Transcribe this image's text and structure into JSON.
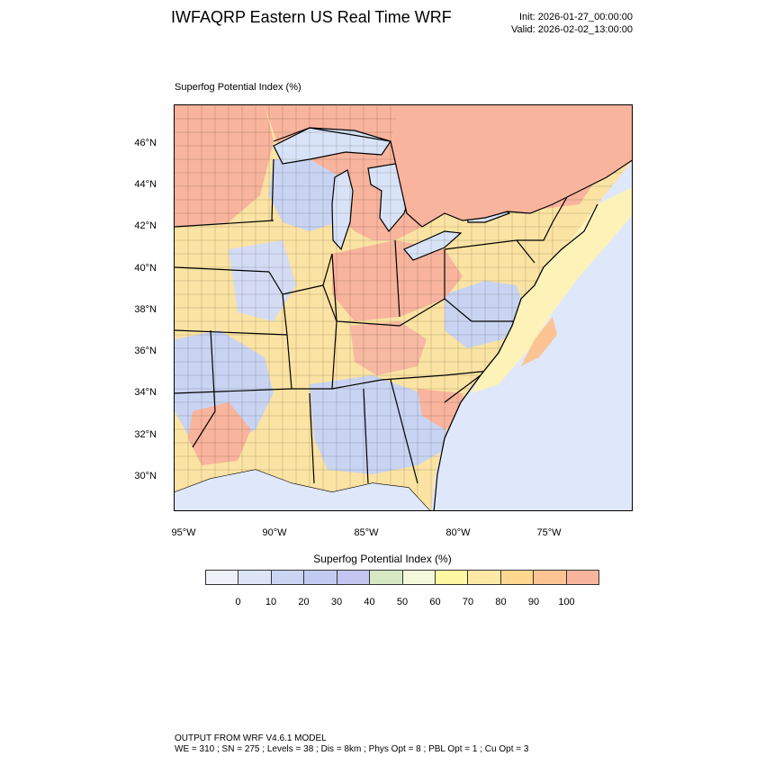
{
  "header": {
    "title": "IWFAQRP Eastern US Real Time WRF",
    "init": "Init: 2026-01-27_00:00:00",
    "valid": "Valid: 2026-02-02_13:00:00"
  },
  "map": {
    "subtitle": "Superfog Potential Index   (%)",
    "lat_labels": [
      "46°N",
      "44°N",
      "42°N",
      "40°N",
      "38°N",
      "36°N",
      "34°N",
      "32°N",
      "30°N"
    ],
    "lon_labels": [
      "95°W",
      "90°W",
      "85°W",
      "80°W",
      "75°W"
    ],
    "colors": {
      "lake": "#d9e3f7",
      "land_high": "#f9b49d",
      "land_mid": "#fbe3a3",
      "land_low": "#c9d4f2",
      "ocean": "#dfe7fb",
      "coast_warm": "#fdf2b8",
      "boundary": "#000000"
    }
  },
  "colorbar": {
    "title": "Superfog Potential Index  (%)",
    "ticks": [
      "0",
      "10",
      "20",
      "30",
      "40",
      "50",
      "60",
      "70",
      "80",
      "90",
      "100"
    ],
    "colors": [
      "#eef1f8",
      "#dde4f6",
      "#cbd5f3",
      "#c2cbf1",
      "#c4c5f0",
      "#d7e8c4",
      "#f4f9dc",
      "#fff7a1",
      "#fde9a6",
      "#fdd88e",
      "#fcc493",
      "#f9b49d"
    ]
  },
  "footer": {
    "line1": "OUTPUT FROM WRF V4.6.1 MODEL",
    "line2": "WE = 310 ; SN = 275 ; Levels = 38 ; Dis = 8km ; Phys Opt = 8 ; PBL Opt = 1 ; Cu Opt = 3"
  }
}
